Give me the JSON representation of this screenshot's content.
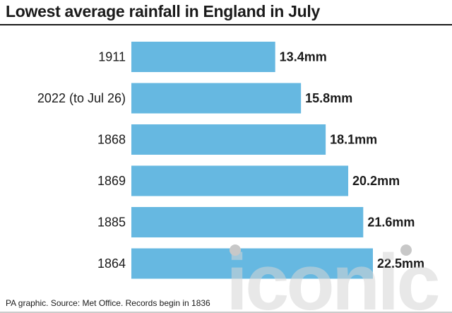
{
  "title": "Lowest average rainfall in England in July",
  "source": "PA graphic. Source: Met Office. Records begin in 1836",
  "watermark_text": "iconic",
  "colors": {
    "bar": "#66b8e1",
    "text": "#1a1a1a",
    "watermark": "#d3d3d3"
  },
  "chart_data": {
    "type": "bar",
    "orientation": "horizontal",
    "title": "Lowest average rainfall in England in July",
    "categories": [
      "1911",
      "2022 (to Jul 26)",
      "1868",
      "1869",
      "1885",
      "1864"
    ],
    "values": [
      13.4,
      15.8,
      18.1,
      20.2,
      21.6,
      22.5
    ],
    "value_labels": [
      "13.4mm",
      "15.8mm",
      "18.1mm",
      "20.2mm",
      "21.6mm",
      "22.5mm"
    ],
    "unit": "mm",
    "grid": false,
    "legend": "none"
  }
}
